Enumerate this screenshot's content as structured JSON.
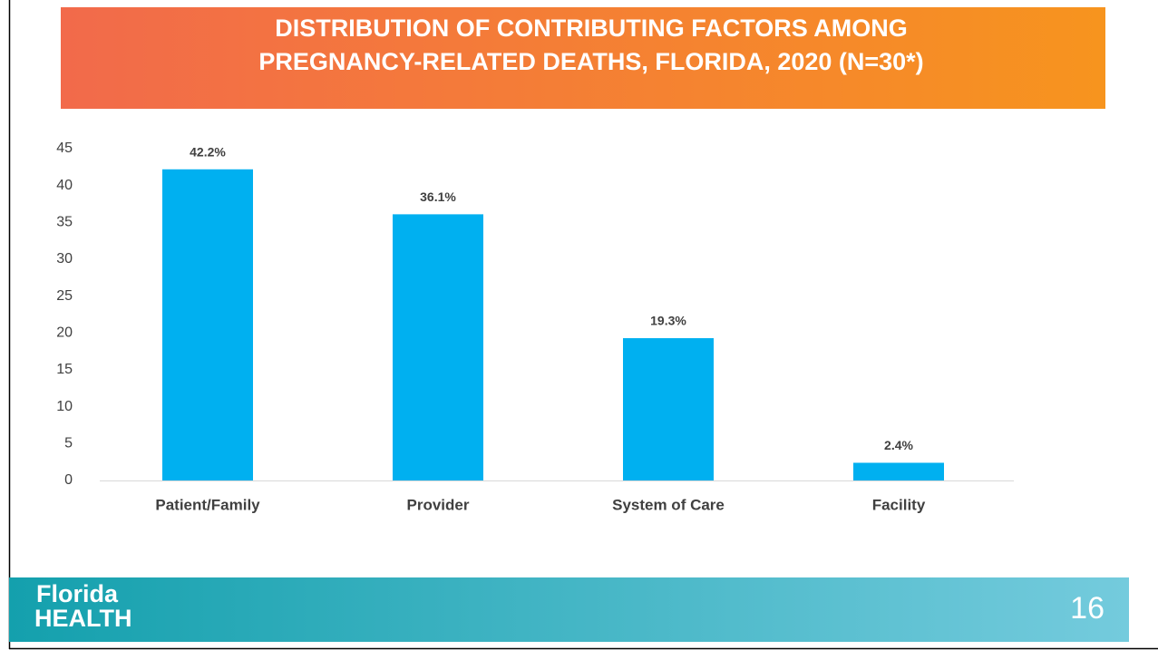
{
  "chart_data": {
    "type": "bar",
    "title": [
      "DISTRIBUTION OF CONTRIBUTING FACTORS AMONG",
      "PREGNANCY-RELATED DEATHS, FLORIDA, 2020 (N=30*)"
    ],
    "categories": [
      "Patient/Family",
      "Provider",
      "System of Care",
      "Facility"
    ],
    "values": [
      42.2,
      36.1,
      19.3,
      2.4
    ],
    "value_labels": [
      "42.2%",
      "36.1%",
      "19.3%",
      "2.4%"
    ],
    "color": "#00b0f0",
    "ylim": [
      0,
      45
    ],
    "yticks": [
      0,
      5,
      10,
      15,
      20,
      25,
      30,
      35,
      40,
      45
    ],
    "grid": false
  },
  "footer": {
    "logo": [
      "Florida",
      "HEALTH"
    ],
    "page_number": "16"
  }
}
